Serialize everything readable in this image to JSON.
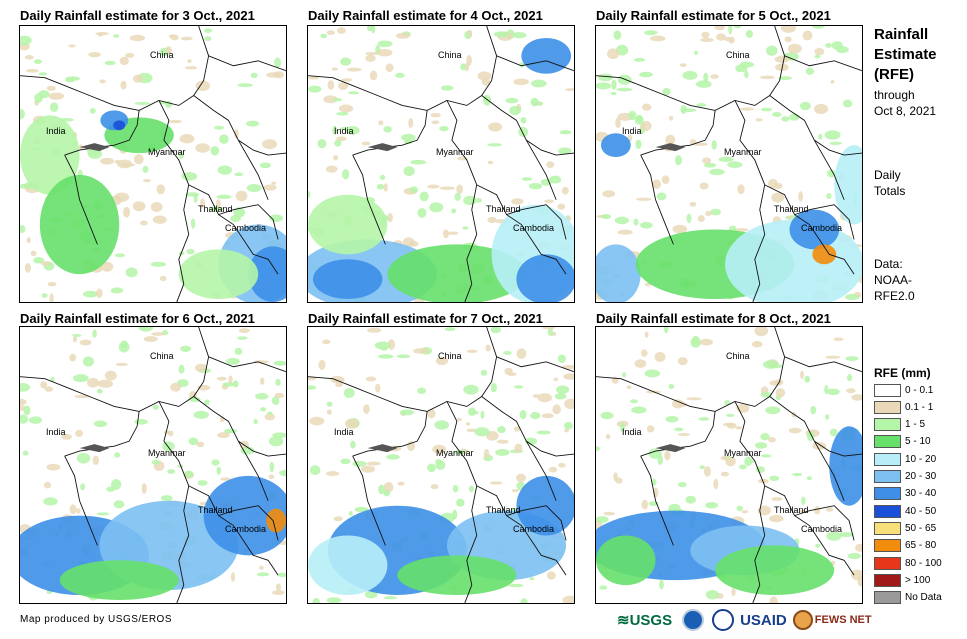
{
  "panels": [
    {
      "title": "Daily Rainfall estimate for 3 Oct., 2021"
    },
    {
      "title": "Daily Rainfall estimate for 4 Oct., 2021"
    },
    {
      "title": "Daily Rainfall estimate for 5 Oct., 2021"
    },
    {
      "title": "Daily Rainfall estimate for 6 Oct., 2021"
    },
    {
      "title": "Daily Rainfall estimate for 7 Oct., 2021"
    },
    {
      "title": "Daily Rainfall estimate for 8 Oct., 2021"
    }
  ],
  "places": {
    "china": "China",
    "india": "India",
    "myanmar": "Myanmar",
    "thailand": "Thailand",
    "cambodia": "Cambodia"
  },
  "side": {
    "title_line1": "Rainfall",
    "title_line2": "Estimate",
    "title_line3": "(RFE)",
    "through_line1": "through",
    "through_line2": "Oct 8, 2021",
    "totals_line1": "Daily",
    "totals_line2": "Totals",
    "data_line1": "Data:",
    "data_line2": "NOAA-",
    "data_line3": "RFE2.0"
  },
  "legend": {
    "title": "RFE (mm)",
    "items": [
      {
        "label": "0 - 0.1",
        "color": "#ffffff"
      },
      {
        "label": "0.1 - 1",
        "color": "#e9d9b8"
      },
      {
        "label": "1 - 5",
        "color": "#b5f5a8"
      },
      {
        "label": "5 - 10",
        "color": "#66e06a"
      },
      {
        "label": "10 - 20",
        "color": "#b7eef7"
      },
      {
        "label": "20 - 30",
        "color": "#7cc0f2"
      },
      {
        "label": "30 - 40",
        "color": "#3d8fe8"
      },
      {
        "label": "40 - 50",
        "color": "#1a4fd9"
      },
      {
        "label": "50 - 65",
        "color": "#f7e07a"
      },
      {
        "label": "65 - 80",
        "color": "#f28c0c"
      },
      {
        "label": "80 - 100",
        "color": "#e8361a"
      },
      {
        "label": "> 100",
        "color": "#a01a1a"
      },
      {
        "label": "No Data",
        "color": "#9a9a9a"
      }
    ]
  },
  "credit": "Map produced by USGS/EROS",
  "logos": {
    "usgs": "USGS",
    "usaid": "USAID",
    "fewsnet": "FEWS NET"
  }
}
